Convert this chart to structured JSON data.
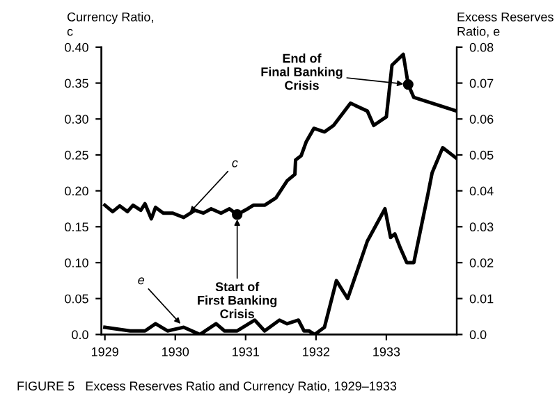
{
  "chart_data": {
    "type": "line",
    "ylabel": "Currency Ratio,\nc",
    "y2label": "Excess Reserves\nRatio, e",
    "xlim": [
      1928.95,
      1934.0
    ],
    "xticks": [
      1929,
      1930,
      1931,
      1932,
      1933
    ],
    "ylim": [
      0,
      0.4
    ],
    "yticks": [
      {
        "value": 0,
        "label": "0.0"
      },
      0.05,
      {
        "value": 0.1,
        "label": "0.10"
      },
      0.15,
      {
        "value": 0.2,
        "label": "0.20"
      },
      0.25,
      {
        "value": 0.3,
        "label": "0.30"
      },
      0.35,
      {
        "value": 0.4,
        "label": "0.40"
      }
    ],
    "y2lim": [
      0,
      0.08
    ],
    "y2ticks": [
      {
        "value": 0,
        "label": "0.0"
      },
      0.01,
      0.02,
      0.03,
      0.04,
      0.05,
      0.06,
      0.07,
      0.08
    ],
    "series": [
      {
        "color": "#000000",
        "x": [
          1929.0,
          1929.11,
          1929.21,
          1929.32,
          1929.4,
          1929.51,
          1929.57,
          1929.66,
          1929.72,
          1929.83,
          1929.96,
          1930.12,
          1930.28,
          1930.4,
          1930.51,
          1930.65,
          1930.77,
          1930.88,
          1931.03,
          1931.11,
          1931.27,
          1931.43,
          1931.59,
          1931.7,
          1931.71,
          1931.79,
          1931.86,
          1931.97,
          1932.12,
          1932.25,
          1932.49,
          1932.73,
          1932.82,
          1933.0,
          1933.08,
          1933.24,
          1933.31,
          1933.39,
          1934.0
        ],
        "values": [
          0.18,
          0.171,
          0.179,
          0.171,
          0.18,
          0.173,
          0.182,
          0.161,
          0.177,
          0.169,
          0.169,
          0.163,
          0.173,
          0.169,
          0.175,
          0.169,
          0.175,
          0.167,
          0.175,
          0.18,
          0.18,
          0.19,
          0.214,
          0.223,
          0.243,
          0.249,
          0.268,
          0.287,
          0.282,
          0.291,
          0.322,
          0.311,
          0.291,
          0.303,
          0.375,
          0.39,
          0.348,
          0.33,
          0.311
        ]
      },
      {
        "color": "#000000",
        "axis": "y2",
        "x": [
          1929.0,
          1929.36,
          1929.57,
          1929.72,
          1929.89,
          1930.12,
          1930.35,
          1930.58,
          1930.7,
          1930.88,
          1931.13,
          1931.27,
          1931.48,
          1931.59,
          1931.75,
          1931.83,
          1931.9,
          1931.98,
          1932.12,
          1932.29,
          1932.45,
          1932.73,
          1932.98,
          1933.06,
          1933.12,
          1933.2,
          1933.29,
          1933.39,
          1933.59,
          1933.65,
          1933.8,
          1934.0
        ],
        "values": [
          0.002,
          0.001,
          0.001,
          0.003,
          0.001,
          0.002,
          0.0,
          0.003,
          0.001,
          0.001,
          0.004,
          0.001,
          0.004,
          0.003,
          0.004,
          0.001,
          0.001,
          0.0,
          0.002,
          0.015,
          0.01,
          0.026,
          0.035,
          0.027,
          0.028,
          0.024,
          0.02,
          0.02,
          0.039,
          0.045,
          0.052,
          0.049
        ]
      }
    ],
    "annotations": [
      {
        "text": "c",
        "x": 1930.16,
        "y": 0.165
      },
      {
        "text": "e",
        "x": 1930.12,
        "y": 0.01
      },
      {
        "text": "Start of\nFirst Banking\nCrisis",
        "x": 1930.88,
        "y": 0.167
      },
      {
        "text": "End of\nFinal Banking\nCrisis",
        "x": 1933.31,
        "y": 0.348
      },
      "FIGURE 5   Excess Reserves Ratio and Currency Ratio, 1929–1933"
    ],
    "grid": false,
    "legend": false
  }
}
